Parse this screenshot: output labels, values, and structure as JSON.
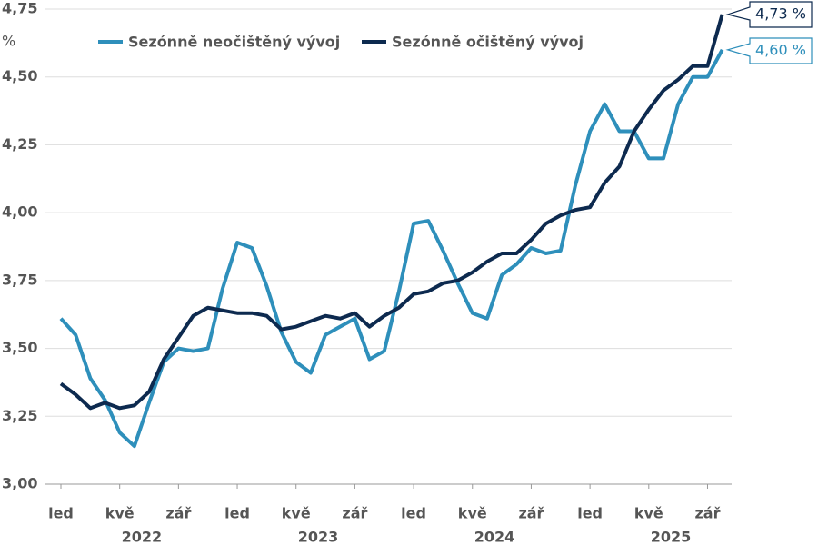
{
  "chart_data": {
    "type": "line",
    "y_unit_label": "%",
    "categories": [
      "led",
      null,
      null,
      null,
      "kvě",
      null,
      null,
      null,
      "zář",
      null,
      null,
      null,
      "led",
      null,
      null,
      null,
      "kvě",
      null,
      null,
      null,
      "zář",
      null,
      null,
      null,
      "led",
      null,
      null,
      null,
      "kvě",
      null,
      null,
      null,
      "zář",
      null,
      null,
      null,
      "led",
      null,
      null,
      null,
      "kvě",
      null,
      null,
      null,
      "zář",
      null
    ],
    "years": [
      "2022",
      "2023",
      "2024",
      "2025"
    ],
    "ylim": [
      3.0,
      4.75
    ],
    "yticks": [
      {
        "value": 3.0,
        "label": "3,00"
      },
      {
        "value": 3.25,
        "label": "3,25"
      },
      {
        "value": 3.5,
        "label": "3,50"
      },
      {
        "value": 3.75,
        "label": "3,75"
      },
      {
        "value": 4.0,
        "label": "4,00"
      },
      {
        "value": 4.25,
        "label": "4,25"
      },
      {
        "value": 4.5,
        "label": "4,50"
      },
      {
        "value": 4.75,
        "label": "4,75"
      }
    ],
    "grid": true,
    "series": [
      {
        "name": "Sezónně neočištěný vývoj",
        "color": "#2e8fbb",
        "values": [
          3.61,
          3.55,
          3.39,
          3.31,
          3.19,
          3.14,
          3.3,
          3.45,
          3.5,
          3.49,
          3.5,
          3.72,
          3.89,
          3.87,
          3.73,
          3.56,
          3.45,
          3.41,
          3.55,
          3.58,
          3.61,
          3.46,
          3.49,
          3.71,
          3.96,
          3.97,
          3.86,
          3.74,
          3.63,
          3.61,
          3.77,
          3.81,
          3.87,
          3.85,
          3.86,
          4.1,
          4.3,
          4.4,
          4.3,
          4.3,
          4.2,
          4.2,
          4.4,
          4.5,
          4.5,
          4.6
        ],
        "value_labels": [
          null,
          null,
          null,
          null,
          null,
          null,
          null,
          null,
          null,
          null,
          null,
          null,
          null,
          null,
          null,
          null,
          null,
          null,
          null,
          null,
          null,
          null,
          null,
          null,
          null,
          null,
          null,
          null,
          null,
          null,
          null,
          null,
          null,
          null,
          null,
          null,
          null,
          null,
          null,
          null,
          null,
          null,
          null,
          null,
          null,
          "4,60 %"
        ]
      },
      {
        "name": "Sezónně očištěný vývoj",
        "color": "#0d2a4f",
        "values": [
          3.37,
          3.33,
          3.28,
          3.3,
          3.28,
          3.29,
          3.34,
          3.46,
          3.54,
          3.62,
          3.65,
          3.64,
          3.63,
          3.63,
          3.62,
          3.57,
          3.58,
          3.6,
          3.62,
          3.61,
          3.63,
          3.58,
          3.62,
          3.65,
          3.7,
          3.71,
          3.74,
          3.75,
          3.78,
          3.82,
          3.85,
          3.85,
          3.9,
          3.96,
          3.99,
          4.01,
          4.02,
          4.11,
          4.17,
          4.3,
          4.38,
          4.45,
          4.49,
          4.54,
          4.54,
          4.73
        ],
        "value_labels": [
          null,
          null,
          null,
          null,
          null,
          null,
          null,
          null,
          null,
          null,
          null,
          null,
          null,
          null,
          null,
          null,
          null,
          null,
          null,
          null,
          null,
          null,
          null,
          null,
          null,
          null,
          null,
          null,
          null,
          null,
          null,
          null,
          null,
          null,
          null,
          null,
          null,
          null,
          null,
          null,
          null,
          null,
          null,
          null,
          null,
          "4,73 %"
        ]
      }
    ],
    "legend": "top-left"
  }
}
